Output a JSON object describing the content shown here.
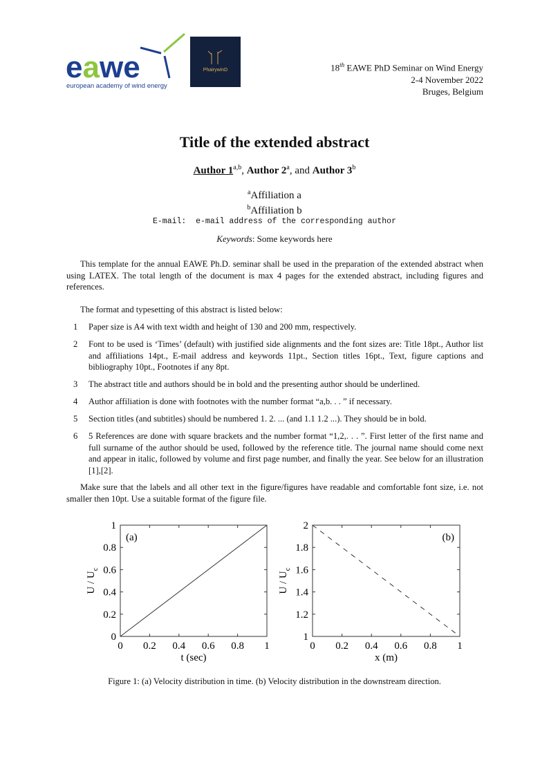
{
  "header": {
    "logo_text": "eawe",
    "logo_subtitle": "european academy of wind energy",
    "logo2_text": "PhairywinD",
    "event_ordinal": "18",
    "event_ordinal_suffix": "th",
    "event_name": "EAWE PhD Seminar on Wind Energy",
    "dates": "2-4 November 2022",
    "location": "Bruges, Belgium"
  },
  "title": "Title of the extended abstract",
  "authors": [
    {
      "name": "Author 1",
      "sup": "a,b"
    },
    {
      "name": "Author 2",
      "sup": "a"
    },
    {
      "name": "Author 3",
      "sup": "b"
    }
  ],
  "authors_sep": [
    ", ",
    ", and "
  ],
  "affiliations": [
    {
      "sup": "a",
      "text": "Affiliation a"
    },
    {
      "sup": "b",
      "text": "Affiliation b"
    }
  ],
  "email_label": "E-mail:",
  "email": "e-mail address of the corresponding author",
  "keywords_label": "Keywords",
  "keywords": ": Some keywords here",
  "intro": "This template for the annual EAWE Ph.D. seminar shall be used in the preparation of the extended abstract when using LATEX. The total length of the document is max 4 pages for the extended abstract, including figures and references.",
  "format_intro": "The format and typesetting of this abstract is listed below:",
  "list": [
    {
      "n": "1",
      "text": "Paper size is A4 with text width and height of 130 and 200 mm, respectively."
    },
    {
      "n": "2",
      "text": "Font to be used is ‘Times’ (default) with justified side alignments and the font sizes are: Title 18pt., Author list and affiliations 14pt., E-mail address and keywords 11pt., Section titles 16pt., Text, figure captions and bibliography 10pt., Footnotes if any 8pt."
    },
    {
      "n": "3",
      "text": "The abstract title and authors should be in bold and the presenting author should be underlined."
    },
    {
      "n": "4",
      "text": "Author affiliation is done with footnotes with the number format “a,b. . . ” if necessary."
    },
    {
      "n": "5",
      "text": "Section titles (and subtitles) should be numbered 1. 2. ... (and 1.1 1.2 ...). They should be in bold."
    },
    {
      "n": "6",
      "text": "5 References are done with square brackets and the number format “1,2,. . . ”. First letter of the first name and full surname of the author should be used, followed by the reference title. The journal name should come next and appear in italic, followed by volume and first page number, and finally the year. See below for an illustration [1],[2]."
    }
  ],
  "figure_note": "Make sure that the labels and all other text in the figure/figures have readable and comfortable font size, i.e. not smaller then 10pt. Use a suitable format of the figure file.",
  "caption": "Figure 1: (a) Velocity distribution in time. (b) Velocity distribution in the downstream direction.",
  "chart_data": [
    {
      "type": "line",
      "panel_label": "(a)",
      "xlabel": "t  (sec)",
      "ylabel": "U / U",
      "ylabel_sub": "c",
      "xlim": [
        0,
        1
      ],
      "ylim": [
        0,
        1
      ],
      "xticks": [
        "0",
        "0.2",
        "0.4",
        "0.6",
        "0.8",
        "1"
      ],
      "yticks": [
        "0",
        "0.2",
        "0.4",
        "0.6",
        "0.8",
        "1"
      ],
      "grid": false,
      "line_style": "solid",
      "x": [
        0,
        1
      ],
      "y": [
        0,
        1
      ]
    },
    {
      "type": "line",
      "panel_label": "(b)",
      "xlabel": "x  (m)",
      "ylabel": "U / U",
      "ylabel_sub": "c",
      "xlim": [
        0,
        1
      ],
      "ylim": [
        1,
        2
      ],
      "xticks": [
        "0",
        "0.2",
        "0.4",
        "0.6",
        "0.8",
        "1"
      ],
      "yticks": [
        "1",
        "1.2",
        "1.4",
        "1.6",
        "1.8",
        "2"
      ],
      "grid": false,
      "line_style": "dashed",
      "x": [
        0,
        1
      ],
      "y": [
        2,
        1
      ]
    }
  ]
}
